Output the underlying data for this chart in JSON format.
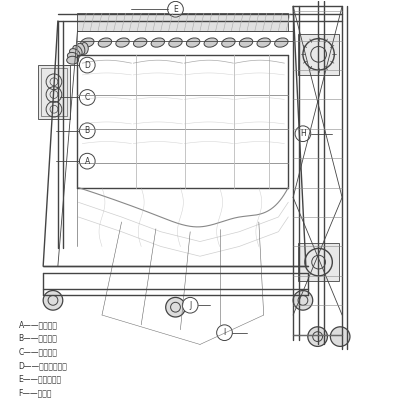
{
  "bg_color": "#ffffff",
  "line_color": "#444444",
  "label_color": "#333333",
  "gray_light": "#bbbbbb",
  "gray_med": "#888888",
  "gray_dark": "#555555",
  "legend_items": [
    "A——传动链；",
    "B——夹置杆；",
    "C——传动链；",
    "D——自调节轴承；",
    "E——锁紧圆柱；",
    "F——滚轮轴"
  ],
  "fig_width": 4.0,
  "fig_height": 4.0,
  "dpi": 100
}
